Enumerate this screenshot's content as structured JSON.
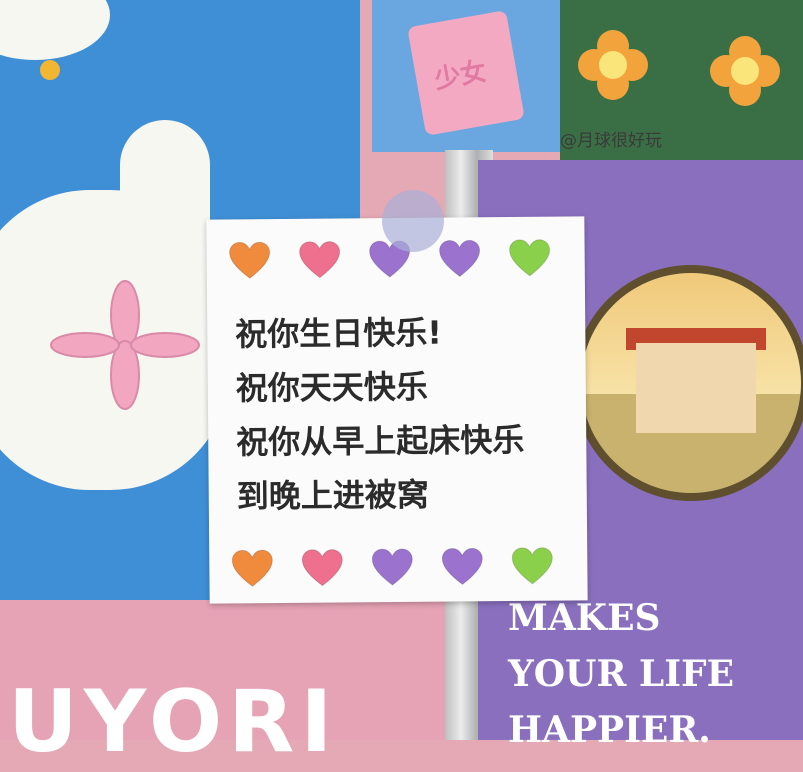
{
  "sticky_note": {
    "lines": [
      "祝你生日快乐!",
      "祝你天天快乐",
      "祝你从早上起床快乐",
      "到晚上进被窝"
    ],
    "hearts_top": [
      "#f08a3c",
      "#ee6f8e",
      "#9b73cf",
      "#9b73cf",
      "#8bd04a"
    ],
    "hearts_bottom": [
      "#f08a3c",
      "#ee6f8e",
      "#9b73cf",
      "#9b73cf",
      "#8bd04a"
    ]
  },
  "milk_card": {
    "label": "少女"
  },
  "watermark": "@月球很好玩",
  "poster": {
    "line1": "MAKES",
    "line2": "YOUR LIFE",
    "line3": "HAPPIER."
  },
  "bottom_poster": {
    "partial_text": "UYORI"
  }
}
